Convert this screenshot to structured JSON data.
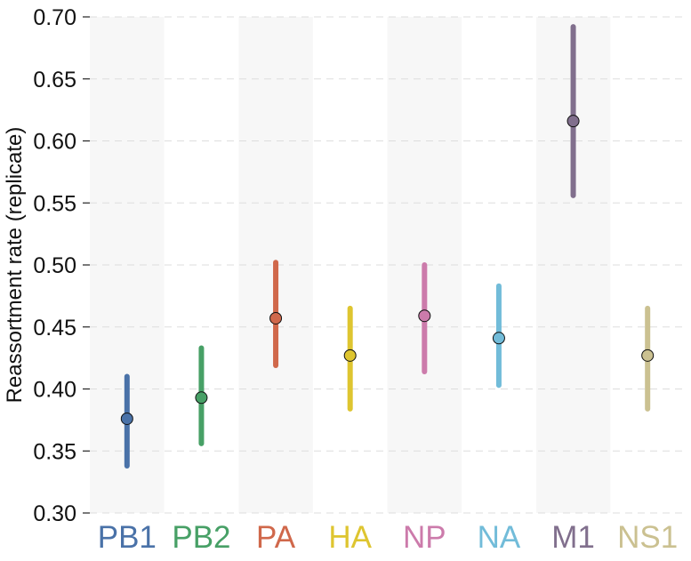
{
  "chart_data": {
    "type": "scatter",
    "title": "",
    "xlabel": "",
    "ylabel": "Reassortment rate (replicate)",
    "ylim": [
      0.3,
      0.7
    ],
    "yticks": [
      "0.30",
      "0.35",
      "0.40",
      "0.45",
      "0.50",
      "0.55",
      "0.60",
      "0.65",
      "0.70"
    ],
    "grid": "horizontal dashed",
    "alternating_bands": true,
    "categories": [
      "PB1",
      "PB2",
      "PA",
      "HA",
      "NP",
      "NA",
      "M1",
      "NS1"
    ],
    "points": [
      {
        "category": "PB1",
        "value": 0.376,
        "low": 0.338,
        "high": 0.41,
        "color": "#4a72a8"
      },
      {
        "category": "PB2",
        "value": 0.393,
        "low": 0.356,
        "high": 0.433,
        "color": "#47a066"
      },
      {
        "category": "PA",
        "value": 0.457,
        "low": 0.419,
        "high": 0.502,
        "color": "#d0684b"
      },
      {
        "category": "HA",
        "value": 0.427,
        "low": 0.384,
        "high": 0.465,
        "color": "#dec530"
      },
      {
        "category": "NP",
        "value": 0.459,
        "low": 0.414,
        "high": 0.5,
        "color": "#cc7bab"
      },
      {
        "category": "NA",
        "value": 0.441,
        "low": 0.403,
        "high": 0.483,
        "color": "#72bcd9"
      },
      {
        "category": "M1",
        "value": 0.616,
        "low": 0.556,
        "high": 0.692,
        "color": "#816f8d"
      },
      {
        "category": "NS1",
        "value": 0.427,
        "low": 0.384,
        "high": 0.465,
        "color": "#cbc191"
      }
    ]
  }
}
